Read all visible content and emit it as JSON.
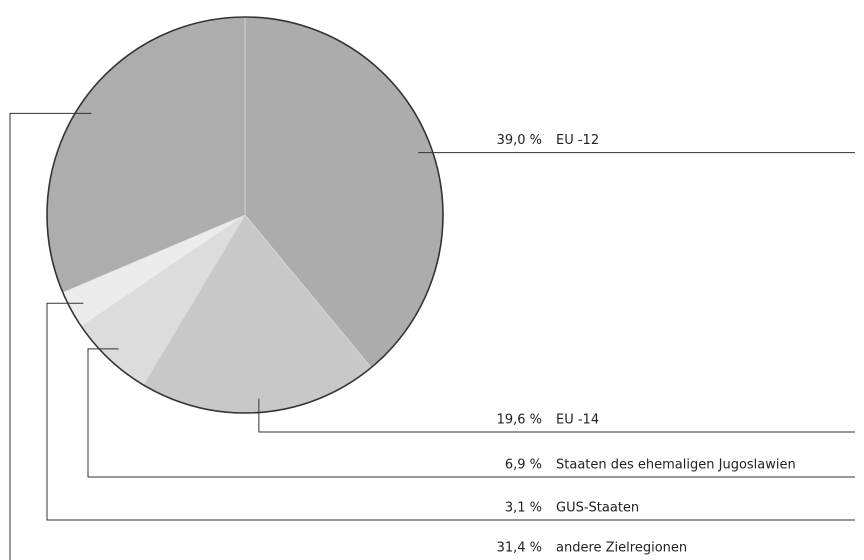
{
  "chart_data": {
    "type": "pie",
    "categories": [
      "EU -12",
      "EU -14",
      "Staaten des ehemaligen Jugoslawien",
      "GUS-Staaten",
      "andere Zielregionen"
    ],
    "values": [
      39.0,
      19.6,
      6.9,
      3.1,
      31.4
    ],
    "value_labels": [
      "39,0 %",
      "19,6 %",
      "6,9 %",
      "3,1 %",
      "31,4 %"
    ],
    "colors": [
      "#acacac",
      "#c8c8c8",
      "#dcdcdc",
      "#ececec",
      "#adadad"
    ]
  }
}
